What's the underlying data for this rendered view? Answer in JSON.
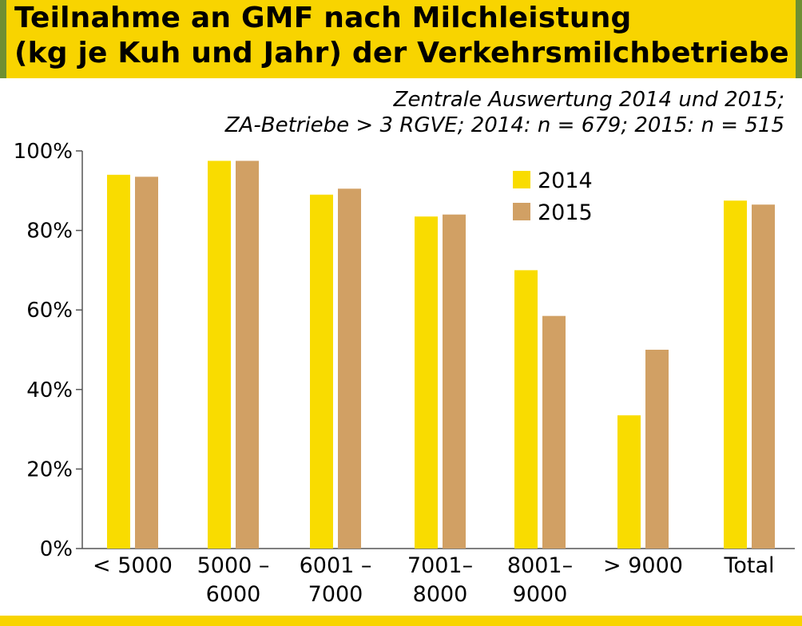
{
  "title": {
    "line1": "Teilnahme an GMF nach Milchleistung",
    "line2": "(kg je Kuh und Jahr) der Verkehrsmilchbetriebe"
  },
  "subtitle": {
    "line1": "Zentrale Auswertung 2014 und 2015;",
    "line2": "ZA-Betriebe > 3 RGVE; 2014: n = 679; 2015: n = 515"
  },
  "colors": {
    "accent_yellow": "#f8d400",
    "series_2014": "#f9dc00",
    "series_2015": "#d1a064",
    "frame_green": "#6f8f32"
  },
  "chart_data": {
    "type": "bar",
    "title": "Teilnahme an GMF nach Milchleistung (kg je Kuh und Jahr) der Verkehrsmilchbetriebe",
    "xlabel": "",
    "ylabel": "",
    "ylim": [
      0,
      100
    ],
    "yticks": [
      0,
      20,
      40,
      60,
      80,
      100
    ],
    "ytick_labels": [
      "0%",
      "20%",
      "40%",
      "60%",
      "80%",
      "100%"
    ],
    "grid": false,
    "legend_position": "top-right",
    "categories": [
      [
        "< 5000"
      ],
      [
        "5000 –",
        "6000"
      ],
      [
        "6001 –",
        "7000"
      ],
      [
        "7001–",
        "8000"
      ],
      [
        "8001–",
        "9000"
      ],
      [
        "> 9000"
      ],
      [
        "Total"
      ]
    ],
    "series": [
      {
        "name": "2014",
        "color": "#f9dc00",
        "values": [
          94,
          97.5,
          89,
          83.5,
          70,
          33.5,
          87.5
        ]
      },
      {
        "name": "2015",
        "color": "#d1a064",
        "values": [
          93.5,
          97.5,
          90.5,
          84,
          58.5,
          50,
          86.5
        ]
      }
    ]
  }
}
